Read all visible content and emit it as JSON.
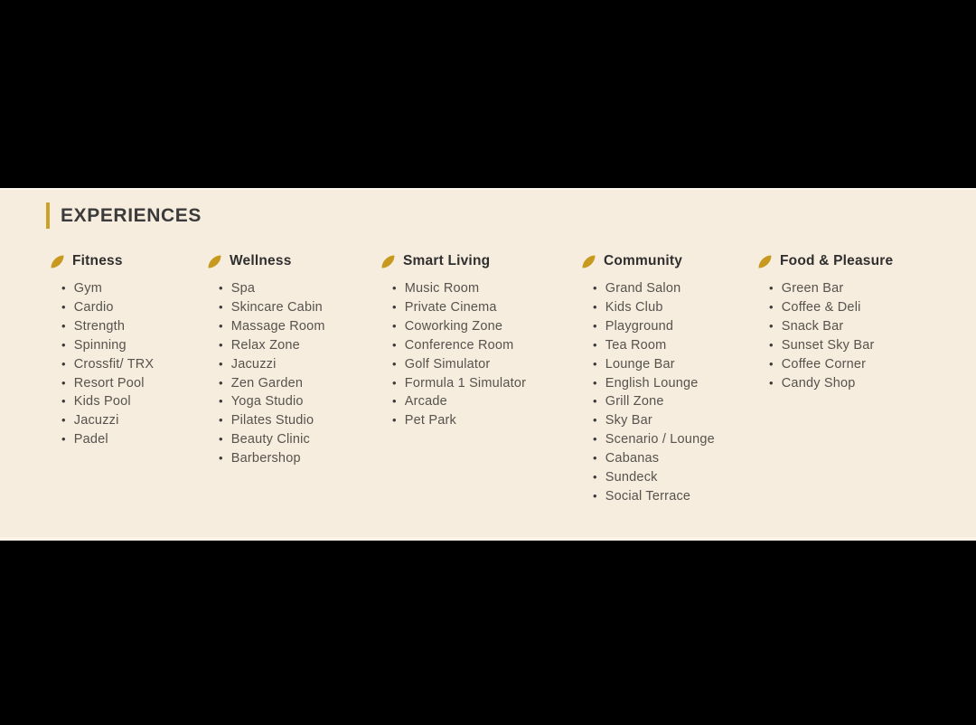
{
  "page": {
    "title": "EXPERIENCES"
  },
  "theme": {
    "background": "#000000",
    "band_background": "#F7EDDE",
    "accent_gold": "#C9A227",
    "leaf_gold": "#C8991F",
    "heading_text": "#3B3B3B",
    "item_text": "#56524D"
  },
  "categories": [
    {
      "name": "Fitness",
      "icon": "leaf-icon",
      "items": [
        "Gym",
        "Cardio",
        "Strength",
        "Spinning",
        "Crossfit/ TRX",
        "Resort Pool",
        "Kids Pool",
        "Jacuzzi",
        "Padel"
      ]
    },
    {
      "name": "Wellness",
      "icon": "leaf-icon",
      "items": [
        "Spa",
        "Skincare Cabin",
        "Massage Room",
        "Relax Zone",
        "Jacuzzi",
        "Zen Garden",
        "Yoga Studio",
        "Pilates Studio",
        "Beauty Clinic",
        "Barbershop"
      ]
    },
    {
      "name": "Smart Living",
      "icon": "leaf-icon",
      "items": [
        "Music Room",
        "Private Cinema",
        "Coworking Zone",
        "Conference Room",
        "Golf Simulator",
        "Formula 1 Simulator",
        "Arcade",
        "Pet Park"
      ]
    },
    {
      "name": "Community",
      "icon": "leaf-icon",
      "items": [
        "Grand Salon",
        "Kids Club",
        "Playground",
        "Tea Room",
        "Lounge Bar",
        "English Lounge",
        "Grill Zone",
        "Sky Bar",
        "Scenario / Lounge",
        "Cabanas",
        "Sundeck",
        "Social Terrace"
      ]
    },
    {
      "name": "Food & Pleasure",
      "icon": "leaf-icon",
      "items": [
        "Green Bar",
        "Coffee & Deli",
        "Snack Bar",
        "Sunset Sky Bar",
        "Coffee Corner",
        "Candy Shop"
      ]
    }
  ]
}
